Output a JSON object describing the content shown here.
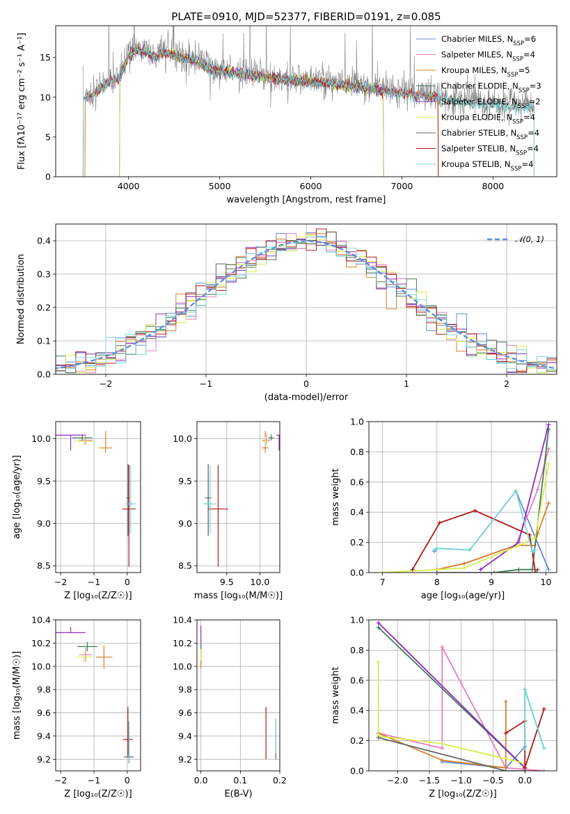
{
  "figure_title": "PLATE=0910, MJD=52377, FIBERID=0191, z=0.085",
  "colors": {
    "Chabrier MILES": "#5b8fd6",
    "Salpeter MILES": "#e87dbb",
    "Kroupa MILES": "#d97f2a",
    "Chabrier ELODIE": "#3c7b54",
    "Salpeter ELODIE": "#8f2cbf",
    "Kroupa ELODIE": "#d6ee4a",
    "Chabrier STELIB": "#666666",
    "Salpeter STELIB": "#b01818",
    "Kroupa STELIB": "#76d6d8",
    "normal_curve": "#5b8fd6",
    "grid": "#b0b0b0"
  },
  "chart_data": [
    {
      "id": "spectrum",
      "type": "line",
      "title": "PLATE=0910, MJD=52377, FIBERID=0191, z=0.085",
      "xlabel": "wavelength [Angstrom, rest frame]",
      "ylabel": "Flux [fλ10⁻¹⁷ erg cm⁻² s⁻¹ A⁻¹]",
      "xlim": [
        3200,
        8700
      ],
      "ylim": [
        0,
        19
      ],
      "xticks": [
        4000,
        5000,
        6000,
        7000,
        8000
      ],
      "yticks": [
        0,
        5,
        10,
        15
      ],
      "grid": false,
      "legend_position": "top-right",
      "legend": [
        "Chabrier MILES, N_SSP=6",
        "Salpeter MILES, N_SSP=4",
        "Kroupa MILES, N_SSP=5",
        "Chabrier ELODIE, N_SSP=3",
        "Salpeter ELODIE, N_SSP=2",
        "Kroupa ELODIE, N_SSP=4",
        "Chabrier STELIB, N_SSP=4",
        "Salpeter STELIB, N_SSP=4",
        "Kroupa STELIB, N_SSP=4"
      ],
      "continuum": {
        "wavelength": [
          3500,
          3600,
          3700,
          3800,
          3900,
          4000,
          4100,
          4200,
          4300,
          4400,
          4500,
          4600,
          4700,
          4800,
          4900,
          5000,
          5200,
          5400,
          5600,
          5800,
          6000,
          6200,
          6400,
          6600,
          6800,
          7000,
          7200,
          7400,
          7600,
          7800,
          8000,
          8200,
          8400
        ],
        "flux": [
          10.0,
          10.5,
          11.5,
          12.3,
          12.6,
          15.5,
          16.3,
          15.9,
          15.2,
          15.8,
          15.6,
          15.1,
          15.0,
          14.6,
          13.8,
          13.6,
          13.3,
          13.0,
          12.7,
          12.4,
          12.2,
          12.0,
          11.7,
          11.5,
          11.1,
          10.8,
          10.6,
          10.1,
          9.8,
          9.4,
          9.2,
          9.1,
          9.0
        ]
      },
      "model_start_wavelength": {
        "Chabrier MILES": 3520,
        "Salpeter MILES": 3520,
        "Kroupa MILES": 3520,
        "Chabrier ELODIE": 3900,
        "Salpeter ELODIE": 3900,
        "Kroupa ELODIE": 3900,
        "Chabrier STELIB": 3500,
        "Salpeter STELIB": 3500,
        "Kroupa STELIB": 3500
      },
      "model_end_wavelength": {
        "Chabrier MILES": 7400,
        "Salpeter MILES": 7400,
        "Kroupa MILES": 7400,
        "Chabrier ELODIE": 6800,
        "Salpeter ELODIE": 6800,
        "Kroupa ELODIE": 6800,
        "Chabrier STELIB": 8450,
        "Salpeter STELIB": 7400,
        "Kroupa STELIB": 8450
      }
    },
    {
      "id": "residuals",
      "type": "line",
      "xlabel": "(data-model)/error",
      "ylabel": "Normed distribution",
      "xlim": [
        -2.5,
        2.5
      ],
      "ylim": [
        0,
        0.45
      ],
      "xticks": [
        -2,
        -1,
        0,
        1,
        2
      ],
      "yticks": [
        0.0,
        0.1,
        0.2,
        0.3,
        0.4
      ],
      "grid": true,
      "legend_position": "top-right",
      "legend": [
        "𝒩(0, 1)"
      ],
      "bin_width": 0.1,
      "hist_offsets": [
        0.012,
        -0.02,
        0.02,
        -0.01,
        0.03,
        -0.025,
        0.015,
        0.0,
        -0.015
      ]
    },
    {
      "id": "age_vs_Z",
      "type": "scatter",
      "xlabel": "Z [log₁₀(Z/Z☉)]",
      "ylabel": "age  [log₁₀(age/yr)]",
      "xlim": [
        -2.15,
        0.4
      ],
      "ylim": [
        8.42,
        10.2
      ],
      "xticks": [
        -2,
        -1,
        0
      ],
      "yticks": [
        8.5,
        9.0,
        9.5,
        10.0
      ],
      "grid": true,
      "points": [
        {
          "model": "Chabrier MILES",
          "x": 0.05,
          "y": 9.23,
          "xerr": [
            0.1,
            0.1
          ],
          "yerr": [
            0.35,
            0.45
          ]
        },
        {
          "model": "Salpeter MILES",
          "x": -1.25,
          "y": 9.98,
          "xerr": [
            0.2,
            0.2
          ],
          "yerr": [
            0.05,
            0.06
          ]
        },
        {
          "model": "Kroupa MILES",
          "x": -0.65,
          "y": 9.89,
          "xerr": [
            0.2,
            0.2
          ],
          "yerr": [
            0.06,
            0.2
          ]
        },
        {
          "model": "Chabrier ELODIE",
          "x": -1.35,
          "y": 10.01,
          "xerr": [
            0.3,
            0.3
          ],
          "yerr": [
            0.03,
            0.04
          ]
        },
        {
          "model": "Salpeter ELODIE",
          "x": -1.7,
          "y": 10.04,
          "xerr": [
            0.45,
            0.45
          ],
          "yerr": [
            0.18,
            0.0
          ]
        },
        {
          "model": "Kroupa ELODIE",
          "x": -1.3,
          "y": 9.97,
          "xerr": [
            0.3,
            0.3
          ],
          "yerr": [
            0.05,
            0.05
          ]
        },
        {
          "model": "Chabrier STELIB",
          "x": 0.02,
          "y": 9.3,
          "xerr": [
            0.05,
            0.05
          ],
          "yerr": [
            0.45,
            0.4
          ]
        },
        {
          "model": "Salpeter STELIB",
          "x": 0.05,
          "y": 9.17,
          "xerr": [
            0.2,
            0.2
          ],
          "yerr": [
            0.68,
            0.52
          ]
        },
        {
          "model": "Kroupa STELIB",
          "x": 0.1,
          "y": 9.23,
          "xerr": [
            0.15,
            0.15
          ],
          "yerr": [
            0.35,
            0.45
          ]
        }
      ]
    },
    {
      "id": "age_vs_mass",
      "type": "scatter",
      "xlabel": "mass [log₁₀(M/M☉)]",
      "ylabel": "",
      "xlim": [
        9.05,
        10.3
      ],
      "ylim": [
        8.42,
        10.2
      ],
      "xticks": [
        9.5,
        10.0
      ],
      "yticks": [
        8.5,
        9.0,
        9.5,
        10.0
      ],
      "grid": true,
      "points": [
        {
          "model": "Chabrier MILES",
          "x": 9.22,
          "y": 9.23,
          "xerr": [
            0.05,
            0.05
          ],
          "yerr": [
            0.35,
            0.45
          ]
        },
        {
          "model": "Salpeter MILES",
          "x": 10.1,
          "y": 9.98,
          "xerr": [
            0.06,
            0.06
          ],
          "yerr": [
            0.05,
            0.08
          ]
        },
        {
          "model": "Kroupa MILES",
          "x": 10.08,
          "y": 9.89,
          "xerr": [
            0.05,
            0.05
          ],
          "yerr": [
            0.06,
            0.2
          ]
        },
        {
          "model": "Chabrier ELODIE",
          "x": 10.17,
          "y": 10.01,
          "xerr": [
            0.04,
            0.04
          ],
          "yerr": [
            0.03,
            0.04
          ]
        },
        {
          "model": "Salpeter ELODIE",
          "x": 10.29,
          "y": 10.04,
          "xerr": [
            0.04,
            0.04
          ],
          "yerr": [
            0.18,
            0.0
          ]
        },
        {
          "model": "Kroupa ELODIE",
          "x": 10.08,
          "y": 9.97,
          "xerr": [
            0.05,
            0.05
          ],
          "yerr": [
            0.05,
            0.05
          ]
        },
        {
          "model": "Chabrier STELIB",
          "x": 9.22,
          "y": 9.3,
          "xerr": [
            0.05,
            0.05
          ],
          "yerr": [
            0.45,
            0.4
          ]
        },
        {
          "model": "Salpeter STELIB",
          "x": 9.37,
          "y": 9.17,
          "xerr": [
            0.15,
            0.15
          ],
          "yerr": [
            0.68,
            0.52
          ]
        },
        {
          "model": "Kroupa STELIB",
          "x": 9.25,
          "y": 9.23,
          "xerr": [
            0.1,
            0.1
          ],
          "yerr": [
            0.35,
            0.45
          ]
        }
      ]
    },
    {
      "id": "weight_vs_age",
      "type": "line",
      "xlabel": "age  [log₁₀(age/yr)]",
      "ylabel": "mass weight",
      "xlim": [
        6.75,
        10.2
      ],
      "ylim": [
        0,
        1.0
      ],
      "xticks": [
        7,
        8,
        9,
        10
      ],
      "yticks": [
        0.0,
        0.2,
        0.4,
        0.6,
        0.8,
        1.0
      ],
      "grid": true,
      "series": [
        {
          "model": "Chabrier MILES",
          "x": [
            7.95,
            8.0,
            8.6,
            9.45,
            10.05
          ],
          "y": [
            0.14,
            0.16,
            0.15,
            0.54,
            0.02
          ]
        },
        {
          "model": "Salpeter MILES",
          "x": [
            8.0,
            8.5,
            9.45,
            9.85,
            10.05
          ],
          "y": [
            0.02,
            0.06,
            0.18,
            0.55,
            0.82
          ]
        },
        {
          "model": "Kroupa MILES",
          "x": [
            8.0,
            8.5,
            9.45,
            9.8,
            9.85,
            10.05
          ],
          "y": [
            0.02,
            0.06,
            0.18,
            0.18,
            0.26,
            0.46
          ]
        },
        {
          "model": "Chabrier ELODIE",
          "x": [
            9.05,
            9.5,
            9.75,
            10.05
          ],
          "y": [
            0.0,
            0.02,
            0.02,
            0.95
          ]
        },
        {
          "model": "Salpeter ELODIE",
          "x": [
            8.8,
            9.5,
            10.05
          ],
          "y": [
            0.02,
            0.2,
            0.98
          ]
        },
        {
          "model": "Kroupa ELODIE",
          "x": [
            7.0,
            8.5,
            9.5,
            9.8,
            10.05
          ],
          "y": [
            0.0,
            0.03,
            0.18,
            0.23,
            0.72
          ]
        },
        {
          "model": "Chabrier STELIB",
          "x": [
            8.0,
            9.5,
            9.8,
            9.85
          ],
          "y": [
            0.0,
            0.0,
            0.0,
            0.02
          ]
        },
        {
          "model": "Salpeter STELIB",
          "x": [
            7.55,
            8.05,
            8.7,
            9.7,
            9.8
          ],
          "y": [
            0.02,
            0.33,
            0.41,
            0.25,
            0.02
          ]
        },
        {
          "model": "Kroupa STELIB",
          "x": [
            7.95,
            8.0,
            8.6,
            9.45,
            9.75,
            9.8
          ],
          "y": [
            0.15,
            0.16,
            0.15,
            0.54,
            0.14,
            0.15
          ]
        }
      ]
    },
    {
      "id": "mass_vs_Z",
      "type": "scatter",
      "xlabel": "Z [log₁₀(Z/Z☉)]",
      "ylabel": "mass [log₁₀(M/M☉)]",
      "xlim": [
        -2.15,
        0.4
      ],
      "ylim": [
        9.1,
        10.4
      ],
      "xticks": [
        -2,
        -1,
        0
      ],
      "yticks": [
        9.2,
        9.4,
        9.6,
        9.8,
        10.0,
        10.2,
        10.4
      ],
      "grid": true,
      "points": [
        {
          "model": "Chabrier MILES",
          "x": 0.05,
          "y": 9.22,
          "xerr": [
            0.1,
            0.1
          ],
          "yerr": [
            0.05,
            0.3
          ]
        },
        {
          "model": "Salpeter MILES",
          "x": -1.25,
          "y": 10.1,
          "xerr": [
            0.2,
            0.2
          ],
          "yerr": [
            0.06,
            0.06
          ]
        },
        {
          "model": "Kroupa MILES",
          "x": -0.7,
          "y": 10.08,
          "xerr": [
            0.25,
            0.25
          ],
          "yerr": [
            0.1,
            0.1
          ]
        },
        {
          "model": "Chabrier ELODIE",
          "x": -1.2,
          "y": 10.17,
          "xerr": [
            0.3,
            0.3
          ],
          "yerr": [
            0.04,
            0.04
          ]
        },
        {
          "model": "Salpeter ELODIE",
          "x": -1.7,
          "y": 10.29,
          "xerr": [
            0.45,
            0.45
          ],
          "yerr": [
            0.0,
            0.05
          ]
        },
        {
          "model": "Kroupa ELODIE",
          "x": -1.3,
          "y": 10.08,
          "xerr": [
            0.25,
            0.25
          ],
          "yerr": [
            0.05,
            0.05
          ]
        },
        {
          "model": "Chabrier STELIB",
          "x": 0.05,
          "y": 9.22,
          "xerr": [
            0.15,
            0.15
          ],
          "yerr": [
            0.05,
            0.3
          ]
        },
        {
          "model": "Salpeter STELIB",
          "x": 0.02,
          "y": 9.37,
          "xerr": [
            0.15,
            0.15
          ],
          "yerr": [
            0.15,
            0.28
          ]
        },
        {
          "model": "Kroupa STELIB",
          "x": 0.05,
          "y": 9.23,
          "xerr": [
            0.05,
            0.05
          ],
          "yerr": [
            0.05,
            0.3
          ]
        }
      ]
    },
    {
      "id": "mass_vs_ebv",
      "type": "scatter",
      "xlabel": "E(B-V)",
      "ylabel": "",
      "xlim": [
        -0.01,
        0.2
      ],
      "ylim": [
        9.1,
        10.4
      ],
      "xticks": [
        0.0,
        0.1,
        0.2
      ],
      "yticks": [
        9.2,
        9.4,
        9.6,
        9.8,
        10.0,
        10.2,
        10.4
      ],
      "grid": true,
      "points": [
        {
          "model": "Chabrier MILES",
          "x": 0.0,
          "y": 10.05,
          "xerr": [
            0,
            0
          ],
          "yerr": [
            0.04,
            0.1
          ]
        },
        {
          "model": "Salpeter MILES",
          "x": 0.0,
          "y": 10.1,
          "xerr": [
            0,
            0
          ],
          "yerr": [
            0.05,
            0.1
          ]
        },
        {
          "model": "Kroupa MILES",
          "x": 0.0,
          "y": 10.05,
          "xerr": [
            0,
            0
          ],
          "yerr": [
            0.07,
            0.1
          ]
        },
        {
          "model": "Chabrier ELODIE",
          "x": 0.0,
          "y": 10.15,
          "xerr": [
            0,
            0
          ],
          "yerr": [
            0.05,
            0.05
          ]
        },
        {
          "model": "Salpeter ELODIE",
          "x": 0.0,
          "y": 10.25,
          "xerr": [
            0,
            0
          ],
          "yerr": [
            0.05,
            0.1
          ]
        },
        {
          "model": "Kroupa ELODIE",
          "x": 0.0,
          "y": 10.1,
          "xerr": [
            0,
            0
          ],
          "yerr": [
            0.05,
            0.05
          ]
        },
        {
          "model": "Chabrier STELIB",
          "x": 0.19,
          "y": 9.3,
          "xerr": [
            0,
            0
          ],
          "yerr": [
            0.1,
            0.25
          ]
        },
        {
          "model": "Salpeter STELIB",
          "x": 0.165,
          "y": 9.45,
          "xerr": [
            0,
            0
          ],
          "yerr": [
            0.25,
            0.2
          ]
        },
        {
          "model": "Kroupa STELIB",
          "x": 0.19,
          "y": 9.4,
          "xerr": [
            0,
            0
          ],
          "yerr": [
            0.15,
            0.15
          ]
        }
      ]
    },
    {
      "id": "weight_vs_Z",
      "type": "line",
      "xlabel": "Z [log₁₀(Z/Z☉)]",
      "ylabel": "mass weight",
      "xlim": [
        -2.45,
        0.5
      ],
      "ylim": [
        0,
        1.0
      ],
      "xticks": [
        -2.0,
        -1.5,
        -1.0,
        -0.5,
        0.0
      ],
      "yticks": [
        0.0,
        0.2,
        0.4,
        0.6,
        0.8,
        1.0
      ],
      "grid": true,
      "series": [
        {
          "model": "Chabrier MILES",
          "x": [
            -1.3,
            -0.3,
            0.0,
            0.0,
            0.3
          ],
          "y": [
            0.06,
            0.02,
            0.16,
            0.54,
            0.15
          ]
        },
        {
          "model": "Salpeter MILES",
          "x": [
            -2.3,
            -1.3,
            -1.3,
            -0.3,
            0.3
          ],
          "y": [
            0.25,
            0.15,
            0.82,
            0.02,
            0.0
          ]
        },
        {
          "model": "Kroupa MILES",
          "x": [
            -2.3,
            -1.3,
            -0.3,
            -0.3
          ],
          "y": [
            0.25,
            0.07,
            0.02,
            0.46
          ]
        },
        {
          "model": "Chabrier ELODIE",
          "x": [
            -2.3,
            0.0
          ],
          "y": [
            0.95,
            0.02
          ]
        },
        {
          "model": "Salpeter ELODIE",
          "x": [
            -2.3,
            0.0
          ],
          "y": [
            0.98,
            0.02
          ]
        },
        {
          "model": "Kroupa ELODIE",
          "x": [
            -2.3,
            -2.3,
            -1.3,
            0.0
          ],
          "y": [
            0.72,
            0.23,
            0.18,
            0.05
          ]
        },
        {
          "model": "Chabrier STELIB",
          "x": [
            -2.3,
            -0.3,
            0.0,
            0.0
          ],
          "y": [
            0.22,
            0.0,
            0.0,
            0.02
          ]
        },
        {
          "model": "Salpeter STELIB",
          "x": [
            -0.3,
            0.0,
            0.0,
            0.3
          ],
          "y": [
            0.25,
            0.33,
            0.02,
            0.41
          ]
        },
        {
          "model": "Kroupa STELIB",
          "x": [
            0.0,
            0.0,
            0.3
          ],
          "y": [
            0.15,
            0.54,
            0.15
          ]
        }
      ]
    }
  ]
}
